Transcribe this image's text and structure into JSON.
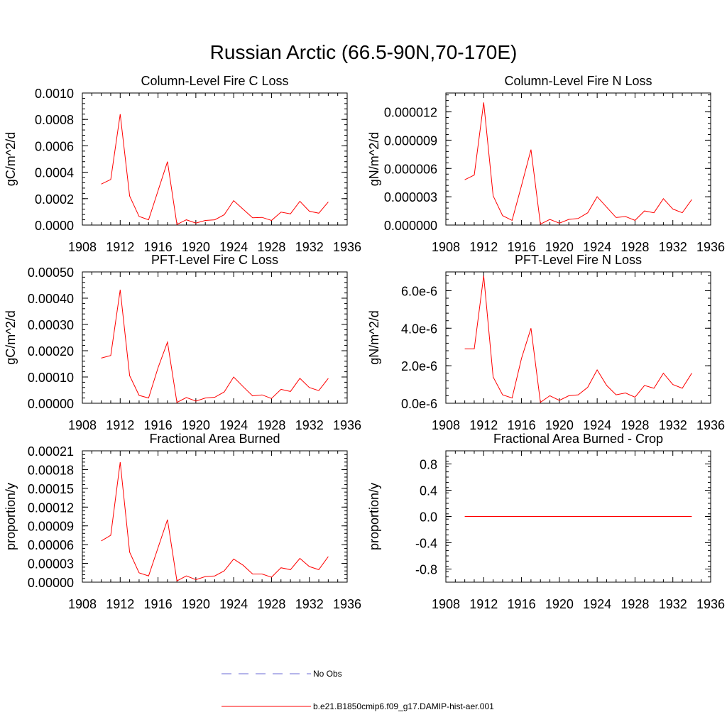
{
  "title": "Russian Arctic (66.5-90N,70-170E)",
  "legend": [
    {
      "label": "No Obs",
      "color": "#6b6bd6",
      "style": "dashed"
    },
    {
      "label": "b.e21.B1850cmip6.f09_g17.DAMIP-hist-aer.001",
      "color": "#ff0000",
      "style": "solid"
    }
  ],
  "chart_data": [
    {
      "type": "line",
      "title": "Column-Level Fire C Loss",
      "ylabel": "gC/m^2/d",
      "xlim": [
        1908,
        1936
      ],
      "ylim": [
        0,
        0.001
      ],
      "xticks": [
        "1908",
        "1912",
        "1916",
        "1920",
        "1924",
        "1928",
        "1932",
        "1936"
      ],
      "yticks": [
        {
          "v": 0,
          "t": "0.0000"
        },
        {
          "v": 0.0002,
          "t": "0.0002"
        },
        {
          "v": 0.0004,
          "t": "0.0004"
        },
        {
          "v": 0.0006,
          "t": "0.0006"
        },
        {
          "v": 0.0008,
          "t": "0.0008"
        },
        {
          "v": 0.001,
          "t": "0.0010"
        }
      ],
      "series": [
        {
          "x": [
            1910,
            1911,
            1912,
            1913,
            1914,
            1915,
            1916,
            1917,
            1918,
            1919,
            1920,
            1921,
            1922,
            1923,
            1924,
            1925,
            1926,
            1927,
            1928,
            1929,
            1930,
            1931,
            1932,
            1933,
            1934
          ],
          "values": [
            0.00031,
            0.000345,
            0.00084,
            0.00022,
            6.5e-05,
            4e-05,
            0.00026,
            0.00048,
            5e-06,
            4e-05,
            1.5e-05,
            3.5e-05,
            4e-05,
            7.8e-05,
            0.000185,
            0.00012,
            5.5e-05,
            5.8e-05,
            3.5e-05,
            9.8e-05,
            8.5e-05,
            0.00018,
            0.000105,
            9e-05,
            0.000175
          ]
        }
      ]
    },
    {
      "type": "line",
      "title": "Column-Level Fire N Loss",
      "ylabel": "gN/m^2/d",
      "xlim": [
        1908,
        1936
      ],
      "ylim": [
        0,
        1.4e-05
      ],
      "xticks": [
        "1908",
        "1912",
        "1916",
        "1920",
        "1924",
        "1928",
        "1932",
        "1936"
      ],
      "yticks": [
        {
          "v": 0,
          "t": "0.000000"
        },
        {
          "v": 3e-06,
          "t": "0.000003"
        },
        {
          "v": 6e-06,
          "t": "0.000006"
        },
        {
          "v": 9e-06,
          "t": "0.000009"
        },
        {
          "v": 1.2e-05,
          "t": "0.000012"
        }
      ],
      "series": [
        {
          "x": [
            1910,
            1911,
            1912,
            1913,
            1914,
            1915,
            1916,
            1917,
            1918,
            1919,
            1920,
            1921,
            1922,
            1923,
            1924,
            1925,
            1926,
            1927,
            1928,
            1929,
            1930,
            1931,
            1932,
            1933,
            1934
          ],
          "values": [
            4.8e-06,
            5.3e-06,
            1.3e-05,
            3.1e-06,
            1e-06,
            5e-07,
            4.2e-06,
            8e-06,
            1e-07,
            6e-07,
            2e-07,
            6e-07,
            7e-07,
            1.3e-06,
            3e-06,
            1.9e-06,
            8e-07,
            9e-07,
            5e-07,
            1.5e-06,
            1.3e-06,
            2.8e-06,
            1.7e-06,
            1.3e-06,
            2.7e-06
          ]
        }
      ]
    },
    {
      "type": "line",
      "title": "PFT-Level Fire C Loss",
      "ylabel": "gC/m^2/d",
      "xlim": [
        1908,
        1936
      ],
      "ylim": [
        0,
        0.0005
      ],
      "xticks": [
        "1908",
        "1912",
        "1916",
        "1920",
        "1924",
        "1928",
        "1932",
        "1936"
      ],
      "yticks": [
        {
          "v": 0,
          "t": "0.00000"
        },
        {
          "v": 0.0001,
          "t": "0.00010"
        },
        {
          "v": 0.0002,
          "t": "0.00020"
        },
        {
          "v": 0.0003,
          "t": "0.00030"
        },
        {
          "v": 0.0004,
          "t": "0.00040"
        },
        {
          "v": 0.0005,
          "t": "0.00050"
        }
      ],
      "series": [
        {
          "x": [
            1910,
            1911,
            1912,
            1913,
            1914,
            1915,
            1916,
            1917,
            1918,
            1919,
            1920,
            1921,
            1922,
            1923,
            1924,
            1925,
            1926,
            1927,
            1928,
            1929,
            1930,
            1931,
            1932,
            1933,
            1934
          ],
          "values": [
            0.000172,
            0.000182,
            0.000432,
            0.000105,
            3e-05,
            2e-05,
            0.000135,
            0.000233,
            3e-06,
            2.2e-05,
            8e-06,
            2e-05,
            2.3e-05,
            4.3e-05,
            0.0001,
            6.3e-05,
            2.8e-05,
            3.2e-05,
            1.8e-05,
            5.3e-05,
            4.5e-05,
            9.5e-05,
            6e-05,
            4.8e-05,
            9.5e-05
          ]
        }
      ]
    },
    {
      "type": "line",
      "title": "PFT-Level Fire N Loss",
      "ylabel": "gN/m^2/d",
      "xlim": [
        1908,
        1936
      ],
      "ylim": [
        0,
        7e-06
      ],
      "xticks": [
        "1908",
        "1912",
        "1916",
        "1920",
        "1924",
        "1928",
        "1932",
        "1936"
      ],
      "yticks": [
        {
          "v": 0,
          "t": "0.0e-6"
        },
        {
          "v": 2e-06,
          "t": "2.0e-6"
        },
        {
          "v": 4e-06,
          "t": "4.0e-6"
        },
        {
          "v": 6e-06,
          "t": "6.0e-6"
        }
      ],
      "series": [
        {
          "x": [
            1910,
            1911,
            1912,
            1913,
            1914,
            1915,
            1916,
            1917,
            1918,
            1919,
            1920,
            1921,
            1922,
            1923,
            1924,
            1925,
            1926,
            1927,
            1928,
            1929,
            1930,
            1931,
            1932,
            1933,
            1934
          ],
          "values": [
            2.9e-06,
            2.9e-06,
            6.8e-06,
            1.4e-06,
            4.5e-07,
            2.8e-07,
            2.4e-06,
            4e-06,
            5e-08,
            4e-07,
            1.5e-07,
            4e-07,
            4.5e-07,
            8.5e-07,
            1.78e-06,
            9.5e-07,
            4.5e-07,
            5.5e-07,
            3.2e-07,
            9.5e-07,
            8e-07,
            1.6e-06,
            1e-06,
            8e-07,
            1.6e-06
          ]
        }
      ]
    },
    {
      "type": "line",
      "title": "Fractional Area Burned",
      "ylabel": "proportion/y",
      "xlim": [
        1908,
        1936
      ],
      "ylim": [
        0,
        0.00021
      ],
      "xticks": [
        "1908",
        "1912",
        "1916",
        "1920",
        "1924",
        "1928",
        "1932",
        "1936"
      ],
      "yticks": [
        {
          "v": 0,
          "t": "0.00000"
        },
        {
          "v": 3e-05,
          "t": "0.00003"
        },
        {
          "v": 6e-05,
          "t": "0.00006"
        },
        {
          "v": 9e-05,
          "t": "0.00009"
        },
        {
          "v": 0.00012,
          "t": "0.00012"
        },
        {
          "v": 0.00015,
          "t": "0.00015"
        },
        {
          "v": 0.00018,
          "t": "0.00018"
        },
        {
          "v": 0.00021,
          "t": "0.00021"
        }
      ],
      "series": [
        {
          "x": [
            1910,
            1911,
            1912,
            1913,
            1914,
            1915,
            1916,
            1917,
            1918,
            1919,
            1920,
            1921,
            1922,
            1923,
            1924,
            1925,
            1926,
            1927,
            1928,
            1929,
            1930,
            1931,
            1932,
            1933,
            1934
          ],
          "values": [
            6.6e-05,
            7.5e-05,
            0.000192,
            4.8e-05,
            1.5e-05,
            1e-05,
            5.5e-05,
            0.0001,
            2e-06,
            1e-05,
            4e-06,
            9e-06,
            1e-05,
            1.8e-05,
            3.7e-05,
            2.7e-05,
            1.3e-05,
            1.3e-05,
            8e-06,
            2.3e-05,
            2e-05,
            3.8e-05,
            2.5e-05,
            2e-05,
            4.1e-05
          ]
        }
      ]
    },
    {
      "type": "line",
      "title": "Fractional Area Burned - Crop",
      "ylabel": "proportion/y",
      "xlim": [
        1908,
        1936
      ],
      "ylim": [
        -1,
        1
      ],
      "xticks": [
        "1908",
        "1912",
        "1916",
        "1920",
        "1924",
        "1928",
        "1932",
        "1936"
      ],
      "yticks": [
        {
          "v": -0.8,
          "t": "-0.8"
        },
        {
          "v": -0.4,
          "t": "-0.4"
        },
        {
          "v": 0,
          "t": "0.0"
        },
        {
          "v": 0.4,
          "t": "0.4"
        },
        {
          "v": 0.8,
          "t": "0.8"
        }
      ],
      "series": [
        {
          "x": [
            1910,
            1934
          ],
          "values": [
            0,
            0
          ]
        }
      ]
    }
  ]
}
